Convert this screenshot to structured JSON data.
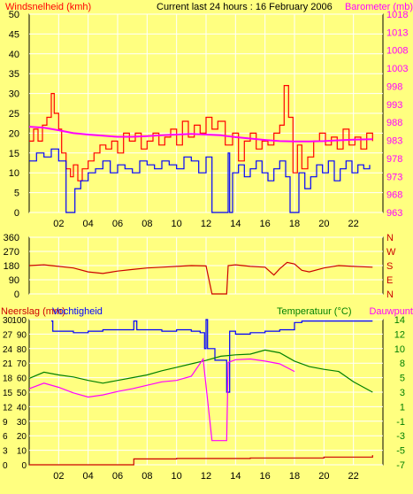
{
  "colors": {
    "background": "#FFFF80",
    "plot_bg": "#FFFF80",
    "grid": "#FFFFFF",
    "frame": "#000000",
    "wind": "#FF0000",
    "gust_low": "#0000FF",
    "barometer": "#FF00FF",
    "direction": "#CC0000",
    "humidity": "#0000FF",
    "temperature": "#008000",
    "dewpoint": "#FF00FF",
    "rain": "#CC0000"
  },
  "chart_data": [
    {
      "id": "wind",
      "type": "line",
      "title": "Current last 24 hours : 16 February 2006",
      "ylabel_left": "Windsnelheid (kmh)",
      "ylabel_right": "Barometer (mb)",
      "xticks": [
        "02",
        "04",
        "06",
        "08",
        "10",
        "12",
        "14",
        "16",
        "18",
        "20",
        "22"
      ],
      "ylim_left": [
        0,
        50
      ],
      "yticks_left": [
        "0",
        "5",
        "10",
        "15",
        "20",
        "25",
        "30",
        "35",
        "40",
        "45",
        "50"
      ],
      "ylim_right": [
        963,
        1018
      ],
      "yticks_right": [
        "963",
        "968",
        "973",
        "978",
        "983",
        "988",
        "993",
        "998",
        "1003",
        "1008",
        "1013",
        "1018"
      ],
      "xlim": [
        0,
        24
      ],
      "grid": true,
      "series": [
        {
          "key": "wind",
          "points": [
            [
              0,
              18
            ],
            [
              0.3,
              21
            ],
            [
              0.6,
              18
            ],
            [
              0.9,
              22
            ],
            [
              1.2,
              24
            ],
            [
              1.5,
              30
            ],
            [
              1.7,
              25
            ],
            [
              2,
              21
            ],
            [
              2.2,
              15
            ],
            [
              2.5,
              11
            ],
            [
              2.8,
              9
            ],
            [
              3,
              12
            ],
            [
              3.3,
              8
            ],
            [
              3.6,
              11
            ],
            [
              4,
              13
            ],
            [
              4.4,
              15
            ],
            [
              4.8,
              17
            ],
            [
              5.2,
              16
            ],
            [
              5.6,
              18
            ],
            [
              6,
              15
            ],
            [
              6.4,
              20
            ],
            [
              6.8,
              18
            ],
            [
              7.2,
              20
            ],
            [
              7.6,
              16
            ],
            [
              8,
              18
            ],
            [
              8.4,
              20
            ],
            [
              8.8,
              17
            ],
            [
              9.2,
              19
            ],
            [
              9.6,
              21
            ],
            [
              10,
              17
            ],
            [
              10.4,
              23
            ],
            [
              10.8,
              19
            ],
            [
              11.2,
              22
            ],
            [
              11.6,
              20
            ],
            [
              12,
              24
            ],
            [
              12.4,
              21
            ],
            [
              12.8,
              23
            ],
            [
              13.3,
              17
            ],
            [
              13.8,
              20
            ],
            [
              14.2,
              13
            ],
            [
              14.6,
              18
            ],
            [
              15,
              20
            ],
            [
              15.4,
              16
            ],
            [
              15.8,
              18
            ],
            [
              16.2,
              17
            ],
            [
              16.6,
              20
            ],
            [
              17,
              22
            ],
            [
              17.3,
              32
            ],
            [
              17.6,
              24
            ],
            [
              17.9,
              10
            ],
            [
              18.2,
              17
            ],
            [
              18.5,
              11
            ],
            [
              18.9,
              14
            ],
            [
              19.3,
              18
            ],
            [
              19.7,
              20
            ],
            [
              20.1,
              17
            ],
            [
              20.5,
              19
            ],
            [
              20.9,
              16
            ],
            [
              21.3,
              21
            ],
            [
              21.7,
              17
            ],
            [
              22.1,
              19
            ],
            [
              22.5,
              16
            ],
            [
              22.9,
              20
            ],
            [
              23.3,
              18
            ]
          ]
        },
        {
          "key": "gust_low",
          "points": [
            [
              0,
              13
            ],
            [
              0.5,
              15
            ],
            [
              1,
              14
            ],
            [
              1.5,
              16
            ],
            [
              2,
              13
            ],
            [
              2.5,
              0
            ],
            [
              2.8,
              0
            ],
            [
              3.1,
              6
            ],
            [
              3.5,
              8
            ],
            [
              4,
              10
            ],
            [
              4.5,
              11
            ],
            [
              5,
              13
            ],
            [
              5.5,
              10
            ],
            [
              6,
              12
            ],
            [
              6.5,
              11
            ],
            [
              7,
              10
            ],
            [
              7.5,
              13
            ],
            [
              8,
              12
            ],
            [
              8.5,
              11
            ],
            [
              9,
              13
            ],
            [
              9.5,
              12
            ],
            [
              10,
              11
            ],
            [
              10.5,
              14
            ],
            [
              11,
              13
            ],
            [
              11.5,
              10
            ],
            [
              12,
              14
            ],
            [
              12.4,
              0
            ],
            [
              13,
              0
            ],
            [
              13.5,
              15
            ],
            [
              13.6,
              0
            ],
            [
              13.8,
              10
            ],
            [
              14.2,
              12
            ],
            [
              14.6,
              9
            ],
            [
              15,
              11
            ],
            [
              15.4,
              13
            ],
            [
              15.8,
              10
            ],
            [
              16.2,
              8
            ],
            [
              16.6,
              11
            ],
            [
              17,
              13
            ],
            [
              17.4,
              9
            ],
            [
              17.7,
              0
            ],
            [
              18,
              0
            ],
            [
              18.3,
              10
            ],
            [
              18.7,
              6
            ],
            [
              19.1,
              9
            ],
            [
              19.5,
              12
            ],
            [
              19.9,
              10
            ],
            [
              20.3,
              13
            ],
            [
              20.7,
              8
            ],
            [
              21.1,
              11
            ],
            [
              21.5,
              13
            ],
            [
              21.9,
              10
            ],
            [
              22.3,
              12
            ],
            [
              22.7,
              11
            ],
            [
              23.1,
              12
            ]
          ]
        },
        {
          "key": "barometer",
          "axis": "right",
          "points": [
            [
              0,
              986.8
            ],
            [
              1,
              986.5
            ],
            [
              2,
              985.8
            ],
            [
              3,
              985.0
            ],
            [
              4,
              984.6
            ],
            [
              5,
              984.3
            ],
            [
              6,
              984.0
            ],
            [
              7,
              984.0
            ],
            [
              8,
              984.2
            ],
            [
              9,
              984.4
            ],
            [
              10,
              984.6
            ],
            [
              11,
              984.8
            ],
            [
              12,
              984.6
            ],
            [
              13,
              984.4
            ],
            [
              14,
              983.9
            ],
            [
              15,
              983.5
            ],
            [
              16,
              983.1
            ],
            [
              17,
              982.8
            ],
            [
              18,
              982.7
            ],
            [
              19,
              982.7
            ],
            [
              20,
              982.8
            ],
            [
              21,
              983.0
            ],
            [
              22,
              983.2
            ],
            [
              23.3,
              983.3
            ]
          ]
        }
      ]
    },
    {
      "id": "direction",
      "type": "line",
      "ylim": [
        0,
        360
      ],
      "yticks": [
        "0",
        "90",
        "180",
        "270",
        "360"
      ],
      "ylabels_right": [
        "N",
        "W",
        "S",
        "E",
        "N"
      ],
      "xlim": [
        0,
        24
      ],
      "grid": true,
      "series": [
        {
          "key": "direction",
          "points": [
            [
              0,
              180
            ],
            [
              1,
              185
            ],
            [
              2,
              175
            ],
            [
              3,
              165
            ],
            [
              4,
              140
            ],
            [
              5,
              130
            ],
            [
              6,
              145
            ],
            [
              7,
              155
            ],
            [
              8,
              165
            ],
            [
              9,
              170
            ],
            [
              10,
              175
            ],
            [
              11,
              180
            ],
            [
              12,
              178
            ],
            [
              12.4,
              0
            ],
            [
              13.4,
              0
            ],
            [
              13.5,
              180
            ],
            [
              14,
              185
            ],
            [
              15,
              175
            ],
            [
              16,
              170
            ],
            [
              16.6,
              120
            ],
            [
              17,
              160
            ],
            [
              17.5,
              200
            ],
            [
              18,
              190
            ],
            [
              18.5,
              150
            ],
            [
              19,
              140
            ],
            [
              20,
              165
            ],
            [
              21,
              180
            ],
            [
              22,
              175
            ],
            [
              23.3,
              170
            ]
          ]
        }
      ]
    },
    {
      "id": "climate",
      "type": "line",
      "ylabel_left_1": "Neerslag (mm)",
      "ylabel_left_2": "Vochtigheid",
      "ylabel_right_1": "Temperatuur (°C)",
      "ylabel_right_2": "Dauwpunt",
      "yticks_humidity": [
        "0",
        "10",
        "20",
        "30",
        "40",
        "50",
        "60",
        "70",
        "80",
        "90",
        "100"
      ],
      "yticks_rain": [
        "0",
        "3",
        "6",
        "9",
        "12",
        "15",
        "18",
        "21",
        "24",
        "27",
        "30"
      ],
      "yticks_temp": [
        "-7",
        "-5",
        "-3",
        "-1",
        "1",
        "3",
        "5",
        "8",
        "10",
        "12",
        "14"
      ],
      "ylim_humidity": [
        0,
        100
      ],
      "ylim_temp": [
        -7,
        14
      ],
      "xlim": [
        0,
        24
      ],
      "grid": true,
      "series": [
        {
          "key": "humidity",
          "points": [
            [
              1.5,
              99
            ],
            [
              1.6,
              92
            ],
            [
              2.5,
              92
            ],
            [
              3,
              91
            ],
            [
              4,
              92
            ],
            [
              5,
              93
            ],
            [
              6,
              93
            ],
            [
              7,
              93
            ],
            [
              7.1,
              99
            ],
            [
              7.3,
              93
            ],
            [
              8,
              93
            ],
            [
              9,
              92
            ],
            [
              10,
              93
            ],
            [
              11,
              92
            ],
            [
              11.6,
              91
            ],
            [
              11.9,
              80
            ],
            [
              12,
              100
            ],
            [
              12.1,
              80
            ],
            [
              12.6,
              72
            ],
            [
              13.4,
              50
            ],
            [
              13.6,
              92
            ],
            [
              14,
              90
            ],
            [
              15,
              91
            ],
            [
              16,
              92
            ],
            [
              17,
              93
            ],
            [
              18,
              98
            ],
            [
              18.5,
              99
            ],
            [
              23.3,
              99
            ]
          ]
        },
        {
          "key": "temperature",
          "points": [
            [
              0,
              5.5
            ],
            [
              1,
              6.4
            ],
            [
              2,
              6.0
            ],
            [
              3,
              5.7
            ],
            [
              4,
              5.2
            ],
            [
              5,
              4.8
            ],
            [
              6,
              5.2
            ],
            [
              7,
              5.6
            ],
            [
              8,
              6.0
            ],
            [
              9,
              6.6
            ],
            [
              10,
              7.1
            ],
            [
              11,
              7.6
            ],
            [
              12,
              8.1
            ],
            [
              13,
              8.7
            ],
            [
              14,
              8.9
            ],
            [
              15,
              9.0
            ],
            [
              16,
              9.6
            ],
            [
              17,
              9.2
            ],
            [
              18,
              8.0
            ],
            [
              19,
              7.2
            ],
            [
              20,
              6.8
            ],
            [
              21,
              6.5
            ],
            [
              22,
              5.0
            ],
            [
              23.3,
              3.5
            ]
          ]
        },
        {
          "key": "dewpoint",
          "points": [
            [
              0,
              4.0
            ],
            [
              1,
              4.8
            ],
            [
              2,
              4.2
            ],
            [
              3,
              3.4
            ],
            [
              4,
              2.8
            ],
            [
              5,
              3.1
            ],
            [
              6,
              3.6
            ],
            [
              7,
              4.0
            ],
            [
              8,
              4.5
            ],
            [
              9,
              5.0
            ],
            [
              10,
              5.2
            ],
            [
              11,
              5.8
            ],
            [
              11.8,
              8.3
            ],
            [
              12.4,
              -3.5
            ],
            [
              13.4,
              -3.5
            ],
            [
              13.5,
              7.8
            ],
            [
              14,
              8.2
            ],
            [
              15,
              8.3
            ],
            [
              16,
              8.0
            ],
            [
              17,
              7.6
            ],
            [
              18,
              6.5
            ]
          ]
        },
        {
          "key": "rain",
          "axis": "rain",
          "points": [
            [
              0,
              0
            ],
            [
              6.9,
              0
            ],
            [
              7.1,
              1.2
            ],
            [
              10,
              1.3
            ],
            [
              15,
              1.4
            ],
            [
              20,
              1.6
            ],
            [
              23.3,
              2.0
            ]
          ]
        }
      ]
    }
  ]
}
